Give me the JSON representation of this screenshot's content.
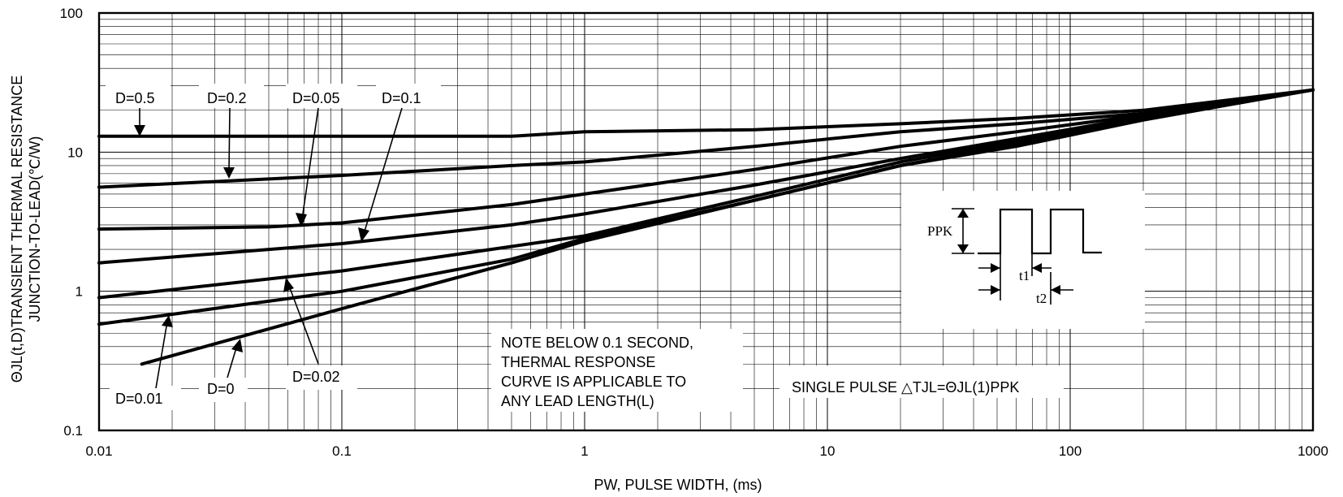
{
  "chart_data": {
    "type": "line",
    "title": "",
    "xlabel": "PW, PULSE WIDTH, (ms)",
    "ylabel_line1": "ΘJL(t,D)TRANSIENT THERMAL RESISTANCE",
    "ylabel_line2": "JUNCTION-TO-LEAD(℃/W)",
    "x_scale": "log",
    "y_scale": "log",
    "xlim": [
      0.01,
      1000
    ],
    "ylim": [
      0.1,
      100
    ],
    "grid": true,
    "x_ticks": [
      {
        "value": 0.01,
        "label": "0.01"
      },
      {
        "value": 0.1,
        "label": "0.1"
      },
      {
        "value": 1,
        "label": "1"
      },
      {
        "value": 10,
        "label": "10"
      },
      {
        "value": 100,
        "label": "100"
      },
      {
        "value": 1000,
        "label": "1000"
      }
    ],
    "y_ticks": [
      {
        "value": 0.1,
        "label": "0.1"
      },
      {
        "value": 1,
        "label": "1"
      },
      {
        "value": 10,
        "label": "10"
      },
      {
        "value": 100,
        "label": "100"
      }
    ],
    "series": [
      {
        "name": "D=0.5",
        "points": [
          [
            0.01,
            13
          ],
          [
            0.1,
            13
          ],
          [
            0.5,
            13
          ],
          [
            1,
            14
          ],
          [
            5,
            14.5
          ],
          [
            20,
            16
          ],
          [
            60,
            17.5
          ],
          [
            200,
            20
          ],
          [
            1000,
            28
          ]
        ]
      },
      {
        "name": "D=0.2",
        "points": [
          [
            0.01,
            5.6
          ],
          [
            0.1,
            6.8
          ],
          [
            0.5,
            8
          ],
          [
            1,
            8.5
          ],
          [
            5,
            11
          ],
          [
            20,
            14
          ],
          [
            60,
            16
          ],
          [
            200,
            19
          ],
          [
            1000,
            28
          ]
        ]
      },
      {
        "name": "D=0.05",
        "points": [
          [
            0.01,
            2.8
          ],
          [
            0.05,
            2.9
          ],
          [
            0.1,
            3.1
          ],
          [
            0.5,
            4.2
          ],
          [
            1,
            5
          ],
          [
            5,
            7.5
          ],
          [
            20,
            11
          ],
          [
            60,
            14
          ],
          [
            200,
            18.5
          ],
          [
            1000,
            28
          ]
        ]
      },
      {
        "name": "D=0.1",
        "points": [
          [
            0.01,
            1.6
          ],
          [
            0.1,
            2.2
          ],
          [
            0.5,
            3
          ],
          [
            1,
            3.6
          ],
          [
            5,
            5.8
          ],
          [
            20,
            9
          ],
          [
            60,
            12.5
          ],
          [
            200,
            18
          ],
          [
            1000,
            28
          ]
        ]
      },
      {
        "name": "D=0.02",
        "points": [
          [
            0.01,
            0.9
          ],
          [
            0.1,
            1.4
          ],
          [
            0.5,
            2.1
          ],
          [
            1,
            2.5
          ],
          [
            5,
            4.8
          ],
          [
            20,
            8.5
          ],
          [
            60,
            12
          ],
          [
            200,
            17.5
          ],
          [
            1000,
            28
          ]
        ]
      },
      {
        "name": "D=0.01",
        "points": [
          [
            0.01,
            0.58
          ],
          [
            0.1,
            1
          ],
          [
            0.5,
            1.7
          ],
          [
            1,
            2.4
          ],
          [
            5,
            4.5
          ],
          [
            20,
            8
          ],
          [
            60,
            11.5
          ],
          [
            200,
            17.5
          ],
          [
            1000,
            28
          ]
        ]
      },
      {
        "name": "D=0",
        "points": [
          [
            0.015,
            0.3
          ],
          [
            0.1,
            0.75
          ],
          [
            0.5,
            1.6
          ],
          [
            1,
            2.3
          ],
          [
            5,
            4.5
          ],
          [
            20,
            8
          ],
          [
            60,
            11
          ],
          [
            200,
            17
          ],
          [
            1000,
            28
          ]
        ]
      }
    ],
    "annotations": [
      {
        "id": "d05",
        "text": "D=0.5"
      },
      {
        "id": "d02",
        "text": "D=0.2"
      },
      {
        "id": "d005",
        "text": "D=0.05"
      },
      {
        "id": "d01",
        "text": "D=0.1"
      },
      {
        "id": "d002",
        "text": "D=0.02"
      },
      {
        "id": "d001",
        "text": "D=0.01"
      },
      {
        "id": "d0",
        "text": "D=0"
      }
    ],
    "note_lines": [
      "NOTE BELOW 0.1 SECOND,",
      "THERMAL RESPONSE",
      "CURVE IS APPLICABLE TO",
      "ANY LEAD LENGTH(L)"
    ],
    "single_pulse_text": "SINGLE PULSE △TJL=ΘJL(1)PPK",
    "inset": {
      "ppk_label": "PPK",
      "t1_label": "t1",
      "t2_label": "t2"
    }
  }
}
